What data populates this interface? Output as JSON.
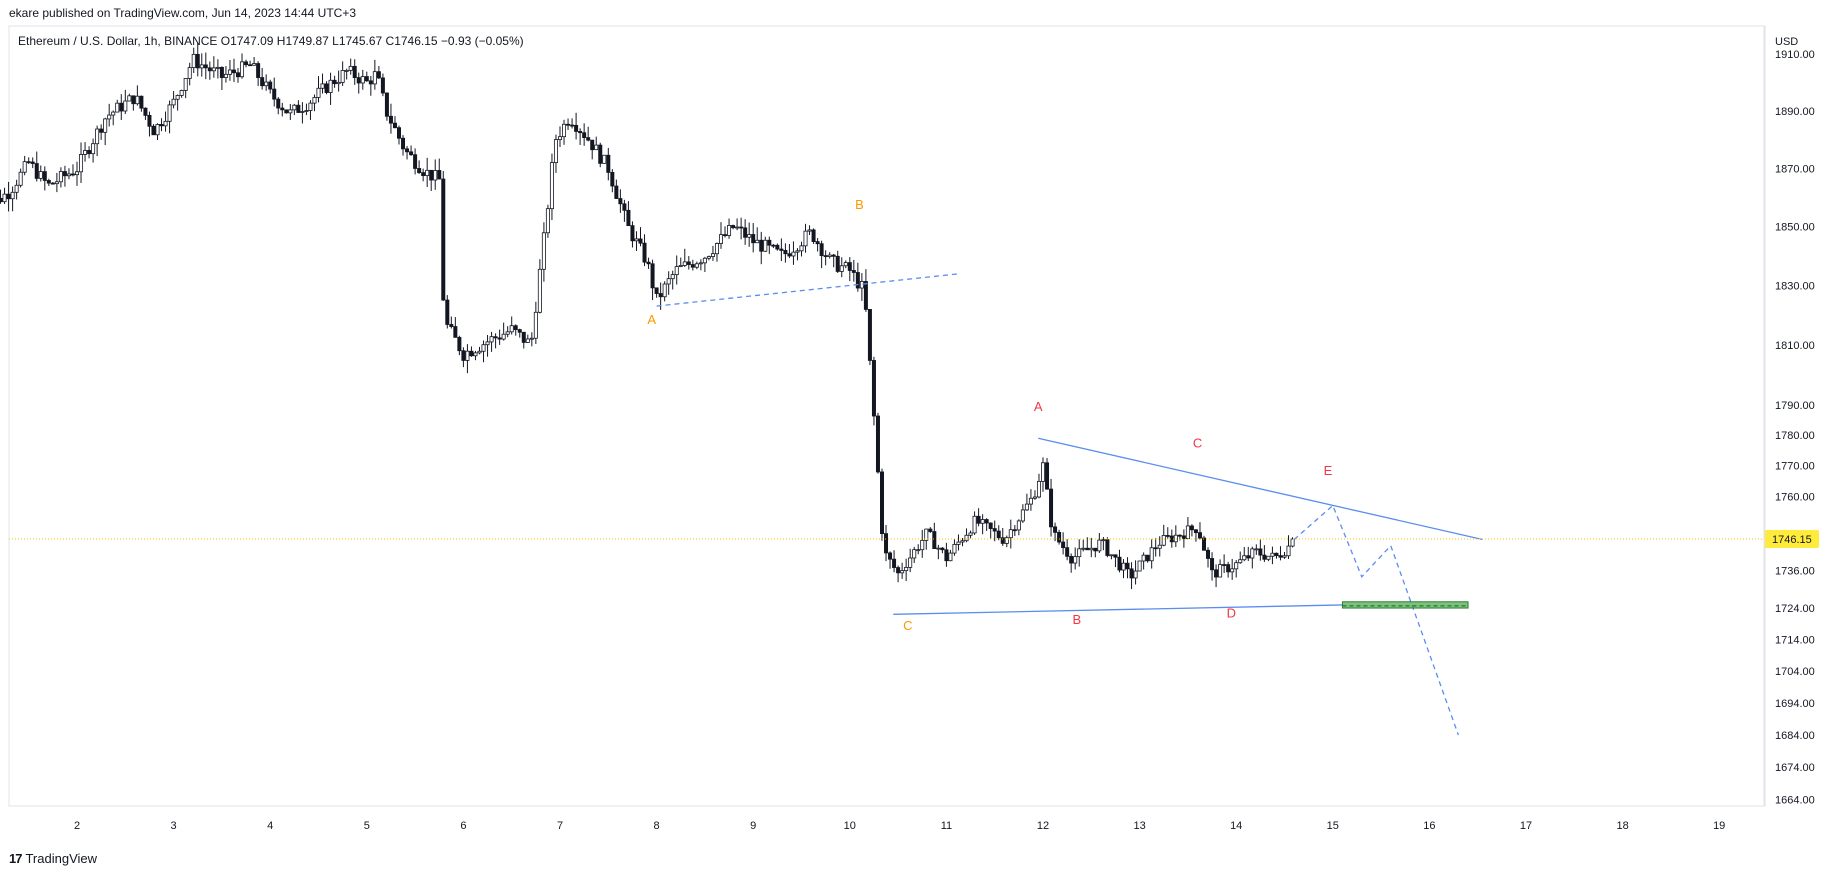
{
  "header": {
    "published": "ekare published on TradingView.com, Jun 14, 2023 14:44 UTC+3",
    "legend": "Ethereum / U.S. Dollar, 1h, BINANCE  O1747.09  H1749.87  L1745.67  C1746.15  −0.93 (−0.05%)"
  },
  "footer": {
    "logo_glyph": "17",
    "brand": "TradingView"
  },
  "chart_data": {
    "type": "candlestick",
    "symbol": "Ethereum / U.S. Dollar",
    "interval": "1h",
    "exchange": "BINANCE",
    "currency": "USD",
    "last_price": "1746.15",
    "scale": "log",
    "price_ticks": [
      "1910.00",
      "1890.00",
      "1870.00",
      "1850.00",
      "1830.00",
      "1810.00",
      "1790.00",
      "1780.00",
      "1770.00",
      "1760.00",
      "1748.00",
      "1736.00",
      "1724.00",
      "1714.00",
      "1704.00",
      "1694.00",
      "1684.00",
      "1674.00",
      "1664.00"
    ],
    "x_ticks": [
      "2",
      "3",
      "4",
      "5",
      "6",
      "7",
      "8",
      "9",
      "10",
      "11",
      "12",
      "13",
      "14",
      "15",
      "16",
      "17",
      "18",
      "19"
    ],
    "price_path": [
      {
        "d": 1.0,
        "p": 1855
      },
      {
        "d": 1.3,
        "p": 1862
      },
      {
        "d": 1.5,
        "p": 1872
      },
      {
        "d": 1.7,
        "p": 1864
      },
      {
        "d": 2.0,
        "p": 1870
      },
      {
        "d": 2.3,
        "p": 1888
      },
      {
        "d": 2.6,
        "p": 1895
      },
      {
        "d": 2.8,
        "p": 1883
      },
      {
        "d": 3.0,
        "p": 1893
      },
      {
        "d": 3.2,
        "p": 1908
      },
      {
        "d": 3.5,
        "p": 1902
      },
      {
        "d": 3.8,
        "p": 1906
      },
      {
        "d": 4.0,
        "p": 1896
      },
      {
        "d": 4.2,
        "p": 1889
      },
      {
        "d": 4.4,
        "p": 1893
      },
      {
        "d": 4.6,
        "p": 1899
      },
      {
        "d": 4.8,
        "p": 1904
      },
      {
        "d": 5.0,
        "p": 1900
      },
      {
        "d": 5.1,
        "p": 1903
      },
      {
        "d": 5.2,
        "p": 1890
      },
      {
        "d": 5.4,
        "p": 1876
      },
      {
        "d": 5.6,
        "p": 1869
      },
      {
        "d": 5.75,
        "p": 1866
      },
      {
        "d": 5.8,
        "p": 1818
      },
      {
        "d": 6.0,
        "p": 1807
      },
      {
        "d": 6.3,
        "p": 1812
      },
      {
        "d": 6.5,
        "p": 1815
      },
      {
        "d": 6.7,
        "p": 1810
      },
      {
        "d": 6.85,
        "p": 1850
      },
      {
        "d": 6.95,
        "p": 1880
      },
      {
        "d": 7.1,
        "p": 1888
      },
      {
        "d": 7.3,
        "p": 1880
      },
      {
        "d": 7.5,
        "p": 1870
      },
      {
        "d": 7.7,
        "p": 1850
      },
      {
        "d": 7.9,
        "p": 1838
      },
      {
        "d": 8.0,
        "p": 1825
      },
      {
        "d": 8.2,
        "p": 1835
      },
      {
        "d": 8.5,
        "p": 1840
      },
      {
        "d": 8.8,
        "p": 1850
      },
      {
        "d": 9.0,
        "p": 1845
      },
      {
        "d": 9.3,
        "p": 1840
      },
      {
        "d": 9.6,
        "p": 1848
      },
      {
        "d": 9.8,
        "p": 1838
      },
      {
        "d": 10.0,
        "p": 1835
      },
      {
        "d": 10.15,
        "p": 1828
      },
      {
        "d": 10.25,
        "p": 1786
      },
      {
        "d": 10.35,
        "p": 1742
      },
      {
        "d": 10.5,
        "p": 1735
      },
      {
        "d": 10.8,
        "p": 1748
      },
      {
        "d": 11.0,
        "p": 1740
      },
      {
        "d": 11.3,
        "p": 1752
      },
      {
        "d": 11.6,
        "p": 1746
      },
      {
        "d": 11.9,
        "p": 1760
      },
      {
        "d": 12.0,
        "p": 1770
      },
      {
        "d": 12.1,
        "p": 1748
      },
      {
        "d": 12.3,
        "p": 1740
      },
      {
        "d": 12.6,
        "p": 1745
      },
      {
        "d": 12.9,
        "p": 1734
      },
      {
        "d": 13.2,
        "p": 1745
      },
      {
        "d": 13.6,
        "p": 1750
      },
      {
        "d": 13.75,
        "p": 1735
      },
      {
        "d": 14.0,
        "p": 1738
      },
      {
        "d": 14.2,
        "p": 1742
      },
      {
        "d": 14.4,
        "p": 1740
      },
      {
        "d": 14.55,
        "p": 1744
      },
      {
        "d": 14.6,
        "p": 1746.15
      }
    ],
    "wave_labels": [
      {
        "text": "A",
        "color": "#ff9800",
        "d": 7.95,
        "p": 1817
      },
      {
        "text": "B",
        "color": "#ff9800",
        "d": 10.1,
        "p": 1856
      },
      {
        "text": "C",
        "color": "#ff9800",
        "d": 10.6,
        "p": 1717
      },
      {
        "text": "A",
        "color": "#f23645",
        "d": 11.95,
        "p": 1788
      },
      {
        "text": "B",
        "color": "#f23645",
        "d": 12.35,
        "p": 1719
      },
      {
        "text": "C",
        "color": "#f23645",
        "d": 13.6,
        "p": 1776
      },
      {
        "text": "D",
        "color": "#f23645",
        "d": 13.95,
        "p": 1721
      },
      {
        "text": "E",
        "color": "#f23645",
        "d": 14.95,
        "p": 1767
      }
    ],
    "lines": [
      {
        "style": "solid",
        "color": "#5b8def",
        "from": {
          "d": 11.95,
          "p": 1779
        },
        "to": {
          "d": 16.55,
          "p": 1746
        }
      },
      {
        "style": "solid",
        "color": "#5b8def",
        "from": {
          "d": 10.45,
          "p": 1722
        },
        "to": {
          "d": 15.1,
          "p": 1725
        }
      },
      {
        "style": "dashed",
        "color": "#5b8def",
        "from": {
          "d": 8.0,
          "p": 1823
        },
        "to": {
          "d": 11.15,
          "p": 1834
        }
      }
    ],
    "projection": [
      {
        "d": 14.6,
        "p": 1746
      },
      {
        "d": 15.0,
        "p": 1757
      },
      {
        "d": 15.3,
        "p": 1734
      },
      {
        "d": 15.6,
        "p": 1744
      },
      {
        "d": 16.3,
        "p": 1684
      }
    ],
    "target_zone": {
      "color": "#4caf50",
      "from_d": 15.1,
      "to_d": 16.4,
      "p_top": 1726,
      "p_bottom": 1724
    },
    "colors": {
      "candle": "#131722",
      "last_price_line": "#f7c600",
      "last_price_label": "#ffeb3b"
    }
  }
}
